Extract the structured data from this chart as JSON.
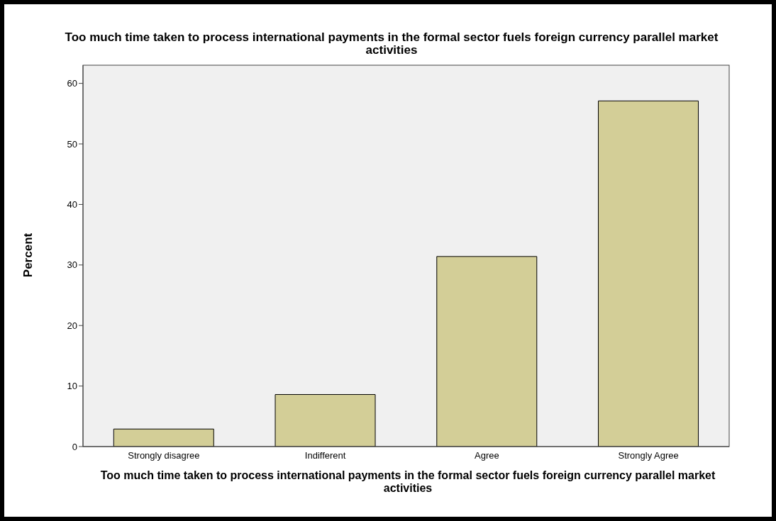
{
  "chart_data": {
    "type": "bar",
    "title": "Too much time taken to process international payments in the formal sector fuels foreign currency parallel market activities",
    "xlabel": "Too much time taken to process international payments in the formal sector fuels foreign currency parallel market activities",
    "ylabel": "Percent",
    "categories": [
      "Strongly disagree",
      "Indifferent",
      "Agree",
      "Strongly Agree"
    ],
    "values": [
      2.9,
      8.6,
      31.4,
      57.1
    ],
    "color": "#d3ce97",
    "ylim": [
      0,
      63
    ],
    "yticks": [
      0,
      10,
      20,
      30,
      40,
      50,
      60
    ],
    "grid": false,
    "legend": false
  }
}
